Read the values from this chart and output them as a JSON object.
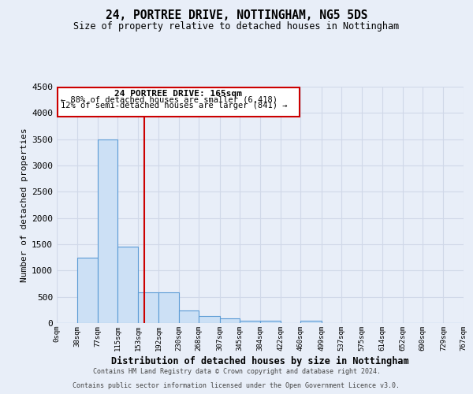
{
  "title": "24, PORTREE DRIVE, NOTTINGHAM, NG5 5DS",
  "subtitle": "Size of property relative to detached houses in Nottingham",
  "xlabel": "Distribution of detached houses by size in Nottingham",
  "ylabel": "Number of detached properties",
  "footer_line1": "Contains HM Land Registry data © Crown copyright and database right 2024.",
  "footer_line2": "Contains public sector information licensed under the Open Government Licence v3.0.",
  "property_size": 165,
  "annotation_title": "24 PORTREE DRIVE: 165sqm",
  "annotation_line1": "← 88% of detached houses are smaller (6,418)",
  "annotation_line2": "12% of semi-detached houses are larger (841) →",
  "bin_edges": [
    0,
    38,
    77,
    115,
    153,
    192,
    230,
    268,
    307,
    345,
    384,
    422,
    460,
    499,
    537,
    575,
    614,
    652,
    690,
    729,
    767
  ],
  "bar_heights": [
    0,
    1250,
    3500,
    1450,
    580,
    580,
    240,
    130,
    90,
    50,
    50,
    0,
    50,
    0,
    0,
    0,
    0,
    0,
    0,
    0
  ],
  "bar_color": "#cce0f5",
  "bar_edge_color": "#5b9bd5",
  "red_line_color": "#cc0000",
  "annotation_box_color": "#cc0000",
  "grid_color": "#d0d8e8",
  "background_color": "#e8eef8",
  "ylim": [
    0,
    4500
  ],
  "yticks": [
    0,
    500,
    1000,
    1500,
    2000,
    2500,
    3000,
    3500,
    4000,
    4500
  ]
}
